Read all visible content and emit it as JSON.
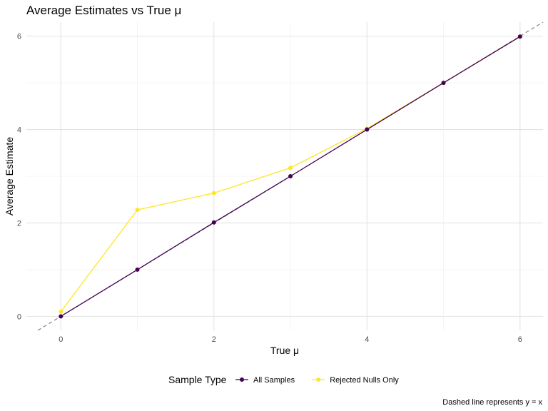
{
  "chart_data": {
    "type": "line",
    "title": "Average Estimates vs True μ",
    "xlabel": "True μ",
    "ylabel": "Average Estimate",
    "x": [
      0,
      1,
      2,
      3,
      4,
      5,
      6
    ],
    "xlim": [
      -0.45,
      6.3
    ],
    "ylim": [
      -0.3,
      6.3
    ],
    "xticks": [
      "0",
      "2",
      "4",
      "6"
    ],
    "yticks": [
      "0",
      "2",
      "4",
      "6"
    ],
    "grid": true,
    "legend_position": "bottom",
    "legend_title": "Sample Type",
    "reference_line": {
      "slope": 1,
      "intercept": 0,
      "style": "dashed",
      "color": "#808080"
    },
    "series": [
      {
        "name": "Rejected Nulls Only",
        "color": "#FDE725",
        "values": [
          0.1,
          2.28,
          2.64,
          3.18,
          4.02,
          5.0,
          5.99
        ]
      },
      {
        "name": "All Samples",
        "color": "#440154",
        "values": [
          0.0,
          1.0,
          2.01,
          3.0,
          4.0,
          5.0,
          5.99
        ]
      }
    ],
    "caption": "Dashed line represents y = x"
  }
}
